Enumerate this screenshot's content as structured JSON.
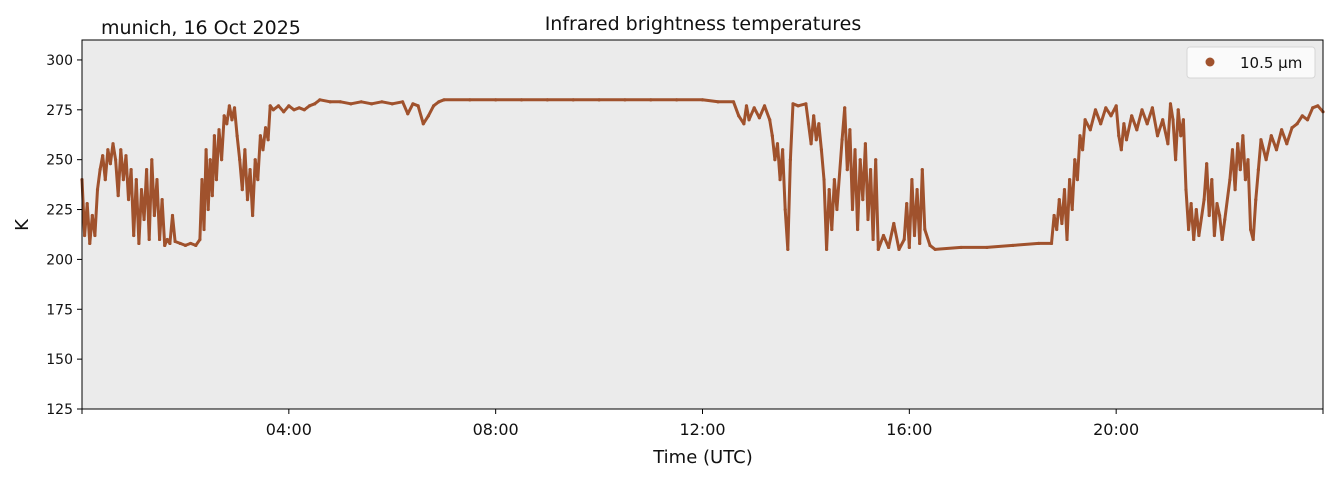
{
  "chart_data": {
    "type": "line",
    "title": "Infrared brightness temperatures",
    "subtitle": "munich, 16 Oct 2025",
    "xlabel": "Time (UTC)",
    "ylabel": "K",
    "xlim": [
      0,
      24
    ],
    "ylim": [
      125,
      310
    ],
    "grid": false,
    "background": "#EBEBEB",
    "x_ticks": [
      4,
      8,
      12,
      16,
      20
    ],
    "x_tick_labels": [
      "04:00",
      "08:00",
      "12:00",
      "16:00",
      "20:00"
    ],
    "y_ticks": [
      125,
      150,
      175,
      200,
      225,
      250,
      275,
      300
    ],
    "y_tick_labels": [
      "125",
      "150",
      "175",
      "200",
      "225",
      "250",
      "275",
      "300"
    ],
    "legend": {
      "placement": "top-right",
      "entries": [
        "10.5 µm"
      ]
    },
    "series": [
      {
        "name": "10.5 µm",
        "color": "#A0522D",
        "x": [
          0.0,
          0.05,
          0.1,
          0.15,
          0.2,
          0.25,
          0.3,
          0.35,
          0.4,
          0.45,
          0.5,
          0.55,
          0.6,
          0.65,
          0.7,
          0.75,
          0.8,
          0.85,
          0.9,
          0.95,
          1.0,
          1.05,
          1.1,
          1.15,
          1.2,
          1.25,
          1.3,
          1.35,
          1.4,
          1.45,
          1.5,
          1.55,
          1.6,
          1.65,
          1.7,
          1.75,
          1.8,
          1.9,
          2.0,
          2.1,
          2.2,
          2.28,
          2.32,
          2.36,
          2.4,
          2.44,
          2.48,
          2.52,
          2.56,
          2.6,
          2.65,
          2.7,
          2.75,
          2.8,
          2.85,
          2.9,
          2.95,
          3.0,
          3.05,
          3.1,
          3.15,
          3.2,
          3.25,
          3.3,
          3.35,
          3.4,
          3.45,
          3.5,
          3.55,
          3.6,
          3.64,
          3.7,
          3.8,
          3.9,
          4.0,
          4.1,
          4.2,
          4.3,
          4.4,
          4.5,
          4.6,
          4.8,
          5.0,
          5.2,
          5.4,
          5.6,
          5.8,
          6.0,
          6.2,
          6.3,
          6.4,
          6.5,
          6.6,
          6.7,
          6.8,
          6.9,
          7.0,
          7.5,
          8.0,
          8.5,
          9.0,
          9.5,
          10.0,
          10.5,
          11.0,
          11.5,
          12.0,
          12.3,
          12.6,
          12.7,
          12.8,
          12.85,
          12.9,
          13.0,
          13.1,
          13.2,
          13.3,
          13.35,
          13.4,
          13.45,
          13.5,
          13.55,
          13.6,
          13.65,
          13.7,
          13.75,
          13.85,
          14.0,
          14.05,
          14.1,
          14.15,
          14.2,
          14.25,
          14.3,
          14.35,
          14.4,
          14.45,
          14.5,
          14.55,
          14.6,
          14.7,
          14.75,
          14.8,
          14.85,
          14.9,
          14.95,
          15.0,
          15.05,
          15.1,
          15.15,
          15.2,
          15.25,
          15.3,
          15.35,
          15.4,
          15.5,
          15.6,
          15.7,
          15.8,
          15.9,
          15.95,
          16.0,
          16.05,
          16.1,
          16.15,
          16.2,
          16.25,
          16.3,
          16.4,
          16.5,
          17.0,
          17.5,
          18.0,
          18.5,
          18.75,
          18.8,
          18.85,
          18.9,
          18.95,
          19.0,
          19.05,
          19.1,
          19.15,
          19.2,
          19.25,
          19.3,
          19.35,
          19.4,
          19.5,
          19.6,
          19.7,
          19.8,
          19.9,
          20.0,
          20.05,
          20.1,
          20.15,
          20.2,
          20.3,
          20.4,
          20.5,
          20.6,
          20.7,
          20.8,
          20.9,
          21.0,
          21.05,
          21.1,
          21.15,
          21.2,
          21.25,
          21.3,
          21.35,
          21.4,
          21.45,
          21.5,
          21.55,
          21.6,
          21.7,
          21.75,
          21.8,
          21.85,
          21.9,
          21.95,
          22.0,
          22.05,
          22.1,
          22.2,
          22.25,
          22.3,
          22.35,
          22.4,
          22.45,
          22.5,
          22.55,
          22.6,
          22.65,
          22.7,
          22.75,
          22.8,
          22.9,
          23.0,
          23.1,
          23.2,
          23.3,
          23.4,
          23.5,
          23.6,
          23.7,
          23.8,
          23.9,
          24.0
        ],
        "y": [
          240,
          212,
          228,
          208,
          222,
          212,
          235,
          245,
          252,
          240,
          255,
          248,
          258,
          250,
          232,
          255,
          240,
          252,
          230,
          245,
          212,
          240,
          208,
          235,
          220,
          245,
          210,
          250,
          222,
          240,
          210,
          230,
          207,
          210,
          208,
          222,
          209,
          208,
          207,
          208,
          207,
          210,
          240,
          215,
          255,
          225,
          250,
          232,
          262,
          240,
          265,
          250,
          272,
          268,
          277,
          270,
          276,
          262,
          250,
          235,
          255,
          230,
          245,
          222,
          250,
          240,
          262,
          255,
          266,
          260,
          277,
          275,
          277,
          274,
          277,
          275,
          276,
          275,
          277,
          278,
          280,
          279,
          279,
          278,
          279,
          278,
          279,
          278,
          279,
          273,
          278,
          277,
          268,
          272,
          277,
          279,
          280,
          280,
          280,
          280,
          280,
          280,
          280,
          280,
          280,
          280,
          280,
          279,
          279,
          272,
          268,
          277,
          270,
          276,
          271,
          277,
          270,
          262,
          250,
          258,
          240,
          255,
          225,
          205,
          250,
          278,
          277,
          278,
          268,
          258,
          272,
          260,
          268,
          255,
          240,
          205,
          235,
          215,
          240,
          225,
          260,
          276,
          245,
          265,
          225,
          255,
          215,
          250,
          230,
          258,
          220,
          245,
          210,
          250,
          205,
          212,
          206,
          218,
          205,
          210,
          228,
          206,
          240,
          212,
          235,
          208,
          245,
          215,
          207,
          205,
          206,
          206,
          207,
          208,
          208,
          222,
          215,
          230,
          218,
          235,
          210,
          240,
          225,
          250,
          240,
          262,
          255,
          270,
          265,
          275,
          268,
          276,
          272,
          277,
          262,
          255,
          268,
          260,
          272,
          265,
          275,
          268,
          276,
          262,
          270,
          258,
          278,
          270,
          250,
          275,
          262,
          270,
          235,
          215,
          228,
          210,
          225,
          212,
          230,
          248,
          222,
          240,
          212,
          228,
          222,
          210,
          220,
          240,
          255,
          235,
          258,
          245,
          262,
          240,
          250,
          215,
          210,
          230,
          245,
          260,
          250,
          262,
          255,
          265,
          258,
          266,
          268,
          272,
          270,
          276,
          277,
          274
        ]
      }
    ]
  }
}
